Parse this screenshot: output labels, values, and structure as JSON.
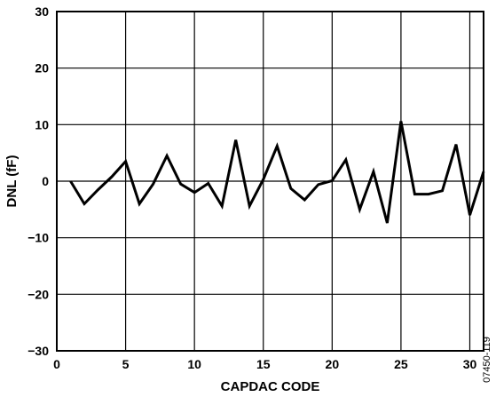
{
  "chart_data": {
    "type": "line",
    "title": "",
    "xlabel": "CAPDAC CODE",
    "ylabel": "DNL (fF)",
    "xlim": [
      0,
      31
    ],
    "ylim": [
      -30,
      30
    ],
    "xticks": [
      0,
      5,
      10,
      15,
      20,
      25,
      30
    ],
    "yticks": [
      30,
      20,
      10,
      0,
      -10,
      -20,
      -30
    ],
    "ytick_labels": [
      "30",
      "20",
      "10",
      "0",
      "−10",
      "−20",
      "−30"
    ],
    "grid": true,
    "figure_id": "07450-119",
    "series": [
      {
        "x": [
          1,
          2,
          3,
          4,
          5,
          6,
          7,
          8,
          9,
          10,
          11,
          12,
          13,
          14,
          15,
          16,
          17,
          18,
          19,
          20,
          21,
          22,
          23,
          24,
          25,
          26,
          27,
          28,
          29,
          30,
          31
        ],
        "values": [
          0,
          -4,
          -1.5,
          0.8,
          3.5,
          -4,
          -0.5,
          4.5,
          -0.5,
          -2,
          -0.4,
          -4.4,
          7.3,
          -4.4,
          0.3,
          6.2,
          -1.3,
          -3.3,
          -0.6,
          0.1,
          3.8,
          -5,
          1.7,
          -7.4,
          10.6,
          -2.3,
          -2.3,
          -1.7,
          6.5,
          -6,
          1.7
        ]
      }
    ]
  }
}
